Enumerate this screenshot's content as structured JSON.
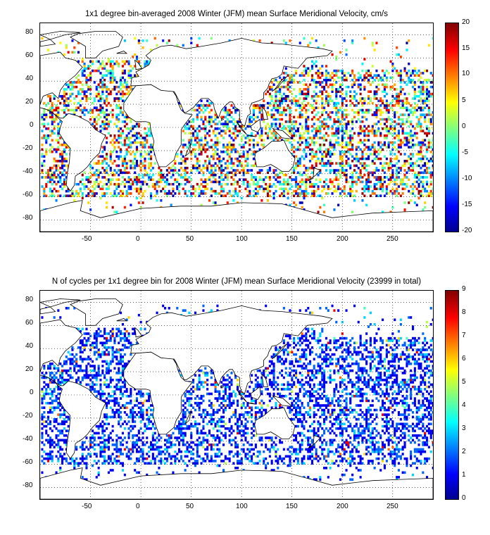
{
  "colors": {
    "land": "#ffffff",
    "coast": "#000000",
    "grid": "#000000",
    "colormap": "jet"
  },
  "map_top": {
    "title": "1x1 degree bin-averaged 2008 Winter (JFM) mean Surface Meridional Velocity, cm/s",
    "x_ticks": [
      "-50",
      "0",
      "50",
      "100",
      "150",
      "200",
      "250"
    ],
    "y_ticks": [
      "80",
      "60",
      "40",
      "20",
      "0",
      "-20",
      "-40",
      "-60",
      "-80"
    ],
    "cbar_ticks": [
      "20",
      "15",
      "10",
      "5",
      "0",
      "-5",
      "-10",
      "-15",
      "-20"
    ]
  },
  "map_bottom": {
    "title": "N of cycles per 1x1 degree bin for 2008 Winter (JFM) mean Surface Meridional Velocity (23999 in total)",
    "x_ticks": [
      "-50",
      "0",
      "50",
      "100",
      "150",
      "200",
      "250"
    ],
    "y_ticks": [
      "80",
      "60",
      "40",
      "20",
      "0",
      "-20",
      "-40",
      "-60",
      "-80"
    ],
    "cbar_ticks": [
      "9",
      "8",
      "7",
      "6",
      "5",
      "4",
      "3",
      "2",
      "1",
      "0"
    ]
  },
  "chart_data": [
    {
      "type": "heatmap",
      "title": "1x1 degree bin-averaged 2008 Winter (JFM) mean Surface Meridional Velocity, cm/s",
      "xlim": [
        -100,
        290
      ],
      "ylim": [
        -90,
        90
      ],
      "grid": true,
      "colorbar": {
        "range": [
          -20,
          20
        ],
        "colormap": "jet",
        "location": "right"
      },
      "values": "per-bin meridional velocity estimates over ocean bins; not individually readable"
    },
    {
      "type": "heatmap",
      "title": "N of cycles per 1x1 degree bin for 2008 Winter (JFM) mean Surface Meridional Velocity (23999 in total)",
      "xlim": [
        -100,
        290
      ],
      "ylim": [
        -90,
        90
      ],
      "grid": true,
      "total": 23999,
      "colorbar": {
        "range": [
          0,
          9
        ],
        "colormap": "jet",
        "location": "right"
      },
      "values": "per-bin cycle counts, mostly 1-3; not individually readable"
    }
  ]
}
